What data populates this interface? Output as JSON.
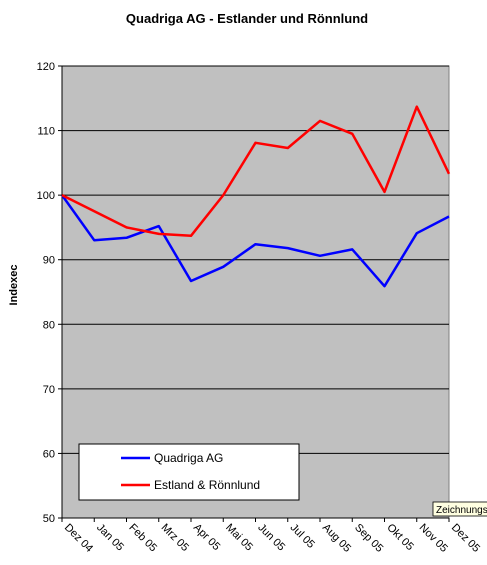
{
  "chart_data": {
    "type": "line",
    "title": "Quadriga AG - Estlander und Rönnlund",
    "xlabel": "",
    "ylabel": "Indexec",
    "ylim": [
      50,
      120
    ],
    "yticks": [
      50,
      60,
      70,
      80,
      90,
      100,
      110,
      120
    ],
    "grid": true,
    "legend_position": "bottom-left",
    "categories": [
      "Dez 04",
      "Jan 05",
      "Feb 05",
      "Mrz 05",
      "Apr 05",
      "Mai 05",
      "Jun 05",
      "Jul 05",
      "Aug 05",
      "Sep 05",
      "Okt 05",
      "Nov 05",
      "Dez 05"
    ],
    "series": [
      {
        "name": "Quadriga AG",
        "color": "#0000ff",
        "values": [
          100,
          93.0,
          93.4,
          95.2,
          86.7,
          88.9,
          92.4,
          91.8,
          90.6,
          91.6,
          85.9,
          94.1,
          96.7
        ]
      },
      {
        "name": "Estland & Rönnlund",
        "color": "#ff0000",
        "values": [
          100,
          97.5,
          95.0,
          94.0,
          93.7,
          100.0,
          108.1,
          107.3,
          111.5,
          109.5,
          100.5,
          113.7,
          103.3
        ]
      }
    ]
  },
  "tooltip": {
    "text": "Zeichnungs"
  },
  "colors": {
    "plot_area": "#c0c0c0",
    "grid": "#000000"
  }
}
